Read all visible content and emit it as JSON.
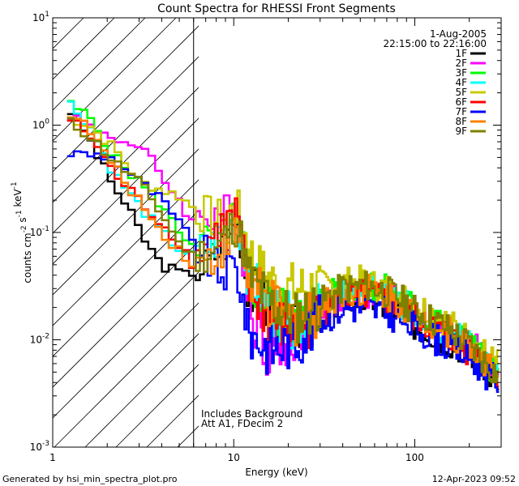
{
  "chart_data": {
    "type": "line",
    "title": "Count Spectra for RHESSI Front Segments",
    "xlabel": "Energy (keV)",
    "ylabel": "counts cm^-2 s^-1 keV^-1",
    "xscale": "log",
    "yscale": "log",
    "xlim": [
      1,
      300
    ],
    "ylim": [
      0.001,
      10
    ],
    "x_ticks": [
      {
        "value": 1,
        "label": "1"
      },
      {
        "value": 10,
        "label": "10"
      },
      {
        "value": 100,
        "label": "100"
      }
    ],
    "y_ticks": [
      {
        "value": 0.001,
        "base": "10",
        "exp": "-3"
      },
      {
        "value": 0.01,
        "base": "10",
        "exp": "-2"
      },
      {
        "value": 0.1,
        "base": "10",
        "exp": "-1"
      },
      {
        "value": 1,
        "base": "10",
        "exp": "0"
      },
      {
        "value": 10,
        "base": "10",
        "exp": "1"
      }
    ],
    "date": "1-Aug-2005",
    "time_range": "22:15:00 to 22:16:00",
    "annotations": [
      "Includes Background",
      "Att A1, FDecim 2"
    ],
    "shaded_region": {
      "x_max": 6,
      "description": "hatched excluded region below 6 keV"
    },
    "series": [
      {
        "name": "1F",
        "color": "#000000",
        "knots": [
          [
            1.2,
            1.5
          ],
          [
            1.5,
            0.9
          ],
          [
            2,
            0.35
          ],
          [
            2.7,
            0.15
          ],
          [
            3.3,
            0.08
          ],
          [
            4,
            0.05
          ],
          [
            5.5,
            0.04
          ],
          [
            7,
            0.05
          ],
          [
            9.5,
            0.09
          ],
          [
            10.5,
            0.15
          ],
          [
            12,
            0.03
          ],
          [
            16,
            0.018
          ],
          [
            22,
            0.012
          ],
          [
            30,
            0.018
          ],
          [
            40,
            0.025
          ],
          [
            55,
            0.024
          ],
          [
            75,
            0.02
          ],
          [
            100,
            0.014
          ],
          [
            150,
            0.01
          ],
          [
            200,
            0.008
          ],
          [
            240,
            0.006
          ],
          [
            280,
            0.004
          ]
        ]
      },
      {
        "name": "2F",
        "color": "#ff00ff",
        "knots": [
          [
            1.2,
            1.3
          ],
          [
            1.8,
            0.9
          ],
          [
            2.5,
            0.7
          ],
          [
            3.5,
            0.5
          ],
          [
            4.2,
            0.3
          ],
          [
            5,
            0.2
          ],
          [
            6,
            0.12
          ],
          [
            7,
            0.15
          ],
          [
            9,
            0.15
          ],
          [
            10.5,
            0.15
          ],
          [
            12,
            0.025
          ],
          [
            15,
            0.008
          ],
          [
            20,
            0.01
          ],
          [
            30,
            0.02
          ],
          [
            40,
            0.025
          ],
          [
            55,
            0.028
          ],
          [
            75,
            0.025
          ],
          [
            100,
            0.018
          ],
          [
            150,
            0.012
          ],
          [
            200,
            0.009
          ],
          [
            240,
            0.007
          ],
          [
            280,
            0.005
          ]
        ]
      },
      {
        "name": "3F",
        "color": "#00ff00",
        "knots": [
          [
            1.2,
            1.6
          ],
          [
            1.6,
            1.2
          ],
          [
            2.2,
            0.5
          ],
          [
            3,
            0.3
          ],
          [
            4,
            0.18
          ],
          [
            5,
            0.1
          ],
          [
            6,
            0.08
          ],
          [
            8,
            0.08
          ],
          [
            10,
            0.13
          ],
          [
            11,
            0.1
          ],
          [
            12,
            0.04
          ],
          [
            16,
            0.02
          ],
          [
            22,
            0.015
          ],
          [
            30,
            0.022
          ],
          [
            40,
            0.03
          ],
          [
            55,
            0.033
          ],
          [
            75,
            0.028
          ],
          [
            100,
            0.02
          ],
          [
            150,
            0.013
          ],
          [
            200,
            0.009
          ],
          [
            280,
            0.005
          ]
        ]
      },
      {
        "name": "4F",
        "color": "#00ffff",
        "knots": [
          [
            1.2,
            1.7
          ],
          [
            1.6,
            1.0
          ],
          [
            2.2,
            0.35
          ],
          [
            3,
            0.18
          ],
          [
            4,
            0.1
          ],
          [
            5,
            0.07
          ],
          [
            6,
            0.06
          ],
          [
            8,
            0.08
          ],
          [
            10,
            0.12
          ],
          [
            11,
            0.1
          ],
          [
            12,
            0.04
          ],
          [
            16,
            0.02
          ],
          [
            22,
            0.014
          ],
          [
            30,
            0.02
          ],
          [
            40,
            0.028
          ],
          [
            55,
            0.03
          ],
          [
            75,
            0.025
          ],
          [
            100,
            0.018
          ],
          [
            150,
            0.012
          ],
          [
            200,
            0.009
          ],
          [
            280,
            0.005
          ]
        ]
      },
      {
        "name": "5F",
        "color": "#c8c800",
        "knots": [
          [
            1.2,
            1.2
          ],
          [
            1.6,
            1.0
          ],
          [
            2.2,
            0.6
          ],
          [
            3,
            0.3
          ],
          [
            4,
            0.25
          ],
          [
            5,
            0.22
          ],
          [
            6,
            0.17
          ],
          [
            8,
            0.13
          ],
          [
            9.5,
            0.15
          ],
          [
            10.5,
            0.17
          ],
          [
            11.5,
            0.1
          ],
          [
            13,
            0.05
          ],
          [
            18,
            0.03
          ],
          [
            25,
            0.03
          ],
          [
            35,
            0.033
          ],
          [
            50,
            0.035
          ],
          [
            70,
            0.03
          ],
          [
            100,
            0.022
          ],
          [
            150,
            0.015
          ],
          [
            200,
            0.01
          ],
          [
            280,
            0.006
          ]
        ]
      },
      {
        "name": "6F",
        "color": "#ff0000",
        "knots": [
          [
            1.2,
            1.2
          ],
          [
            1.6,
            0.8
          ],
          [
            2.2,
            0.35
          ],
          [
            3,
            0.2
          ],
          [
            4,
            0.12
          ],
          [
            5,
            0.08
          ],
          [
            6,
            0.05
          ],
          [
            7,
            0.08
          ],
          [
            9,
            0.12
          ],
          [
            10.5,
            0.15
          ],
          [
            12,
            0.03
          ],
          [
            16,
            0.015
          ],
          [
            22,
            0.012
          ],
          [
            30,
            0.018
          ],
          [
            40,
            0.024
          ],
          [
            55,
            0.026
          ],
          [
            75,
            0.022
          ],
          [
            100,
            0.016
          ],
          [
            150,
            0.011
          ],
          [
            200,
            0.008
          ],
          [
            280,
            0.005
          ]
        ]
      },
      {
        "name": "7F",
        "color": "#0000ff",
        "knots": [
          [
            1.2,
            0.55
          ],
          [
            2,
            0.52
          ],
          [
            2.5,
            0.4
          ],
          [
            3,
            0.3
          ],
          [
            4,
            0.2
          ],
          [
            5,
            0.12
          ],
          [
            6,
            0.08
          ],
          [
            7,
            0.06
          ],
          [
            8.5,
            0.04
          ],
          [
            10,
            0.05
          ],
          [
            11,
            0.03
          ],
          [
            12,
            0.012
          ],
          [
            16,
            0.008
          ],
          [
            22,
            0.01
          ],
          [
            30,
            0.015
          ],
          [
            40,
            0.02
          ],
          [
            55,
            0.02
          ],
          [
            75,
            0.017
          ],
          [
            100,
            0.013
          ],
          [
            150,
            0.009
          ],
          [
            200,
            0.007
          ],
          [
            280,
            0.004
          ]
        ]
      },
      {
        "name": "8F",
        "color": "#ff8000",
        "knots": [
          [
            1.2,
            1.4
          ],
          [
            1.6,
            0.9
          ],
          [
            2.2,
            0.4
          ],
          [
            3,
            0.2
          ],
          [
            4,
            0.1
          ],
          [
            5,
            0.07
          ],
          [
            6,
            0.05
          ],
          [
            8,
            0.06
          ],
          [
            10,
            0.1
          ],
          [
            11,
            0.08
          ],
          [
            12,
            0.035
          ],
          [
            16,
            0.02
          ],
          [
            22,
            0.015
          ],
          [
            30,
            0.02
          ],
          [
            40,
            0.028
          ],
          [
            55,
            0.03
          ],
          [
            75,
            0.025
          ],
          [
            100,
            0.018
          ],
          [
            150,
            0.012
          ],
          [
            200,
            0.009
          ],
          [
            280,
            0.005
          ]
        ]
      },
      {
        "name": "9F",
        "color": "#808000",
        "knots": [
          [
            1.2,
            1.1
          ],
          [
            1.6,
            0.8
          ],
          [
            2.2,
            0.45
          ],
          [
            3,
            0.3
          ],
          [
            4,
            0.15
          ],
          [
            5,
            0.08
          ],
          [
            6,
            0.06
          ],
          [
            8,
            0.07
          ],
          [
            10,
            0.12
          ],
          [
            11,
            0.09
          ],
          [
            12,
            0.04
          ],
          [
            16,
            0.022
          ],
          [
            22,
            0.016
          ],
          [
            30,
            0.022
          ],
          [
            40,
            0.03
          ],
          [
            55,
            0.032
          ],
          [
            75,
            0.027
          ],
          [
            100,
            0.019
          ],
          [
            150,
            0.013
          ],
          [
            200,
            0.009
          ],
          [
            280,
            0.005
          ]
        ]
      }
    ]
  },
  "footer": {
    "generated_by": "Generated by hsi_min_spectra_plot.pro",
    "timestamp": "12-Apr-2023 09:52"
  }
}
